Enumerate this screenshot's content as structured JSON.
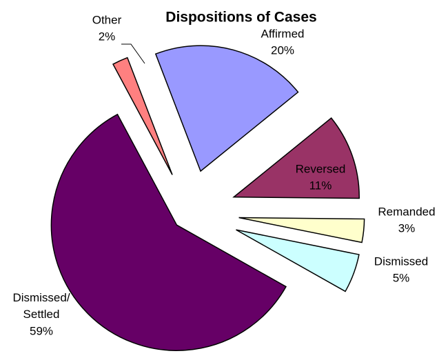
{
  "chart_data": {
    "type": "pie",
    "title": "Dispositions of Cases",
    "categories": [
      "Affirmed",
      "Reversed",
      "Remanded",
      "Dismissed",
      "Dismissed/Settled",
      "Other"
    ],
    "values": [
      20,
      11,
      3,
      5,
      59,
      2
    ],
    "value_labels": [
      "20%",
      "11%",
      "3%",
      "5%",
      "59%",
      "2%"
    ],
    "colors": [
      "#9999ff",
      "#993366",
      "#ffffcc",
      "#ccffff",
      "#660066",
      "#ff8080"
    ]
  }
}
